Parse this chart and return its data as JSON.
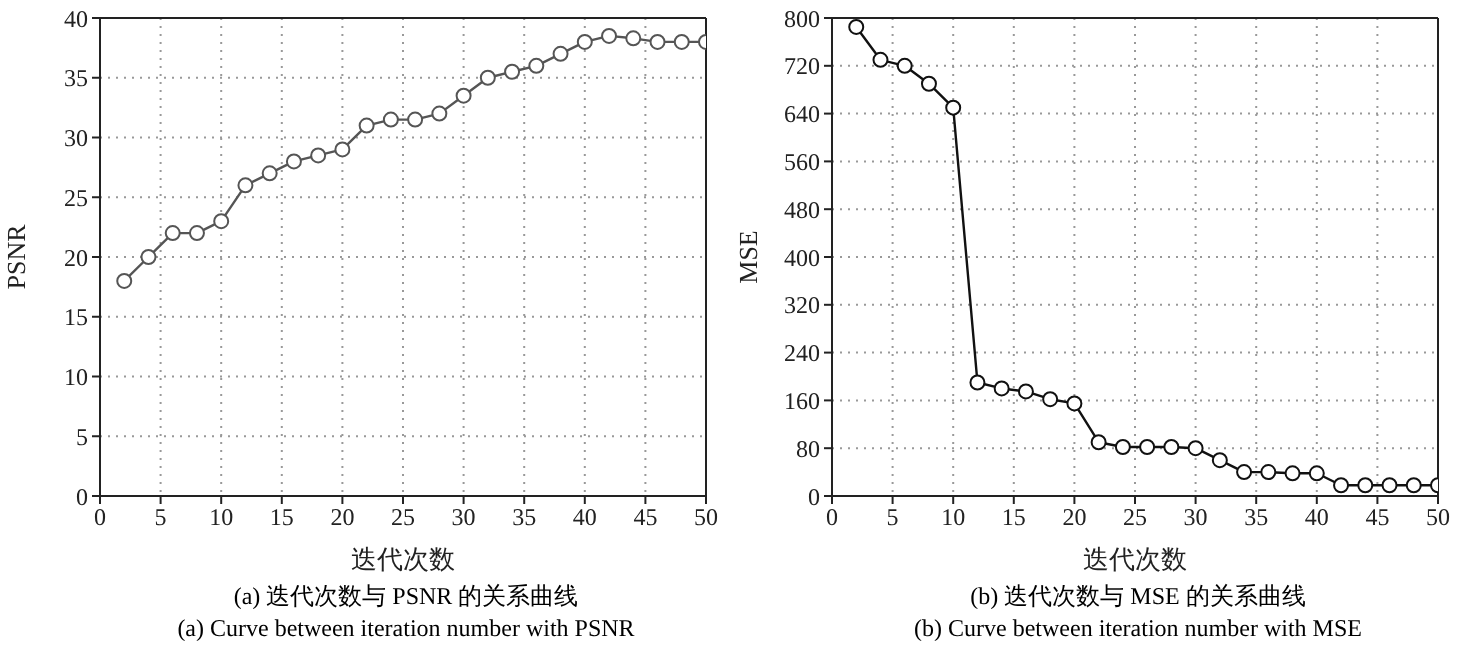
{
  "chart_data": [
    {
      "type": "line",
      "xlabel": "迭代次数",
      "ylabel": "PSNR",
      "x": [
        2,
        4,
        6,
        8,
        10,
        12,
        14,
        16,
        18,
        20,
        22,
        24,
        26,
        28,
        30,
        32,
        34,
        36,
        38,
        40,
        42,
        44,
        46,
        48,
        50
      ],
      "series": [
        {
          "color": "#555555",
          "values": [
            18,
            20,
            22,
            22,
            23,
            26,
            27,
            28,
            28.5,
            29,
            31,
            31.5,
            31.5,
            32,
            33.5,
            35,
            35.5,
            36,
            37,
            38,
            38.5,
            38.3,
            38,
            38,
            38
          ]
        }
      ],
      "xlim": [
        0,
        50
      ],
      "xticks": [
        0,
        5,
        10,
        15,
        20,
        25,
        30,
        35,
        40,
        45,
        50
      ],
      "ylim": [
        0,
        40
      ],
      "yticks": [
        0,
        5,
        10,
        15,
        20,
        25,
        30,
        35,
        40
      ],
      "grid": true,
      "marker": "circle",
      "line_style": "solid",
      "annotations": [
        "(a) 迭代次数与 PSNR 的关系曲线",
        "(a) Curve between iteration number with PSNR"
      ]
    },
    {
      "type": "line",
      "xlabel": "迭代次数",
      "ylabel": "MSE",
      "x": [
        2,
        4,
        6,
        8,
        10,
        12,
        14,
        16,
        18,
        20,
        22,
        24,
        26,
        28,
        30,
        32,
        34,
        36,
        38,
        40,
        42,
        44,
        46,
        48,
        50
      ],
      "series": [
        {
          "color": "#111111",
          "values": [
            785,
            730,
            720,
            690,
            650,
            190,
            180,
            175,
            162,
            155,
            90,
            82,
            82,
            82,
            80,
            60,
            40,
            40,
            38,
            38,
            18,
            18,
            18,
            18,
            18
          ]
        }
      ],
      "xlim": [
        0,
        50
      ],
      "xticks": [
        0,
        5,
        10,
        15,
        20,
        25,
        30,
        35,
        40,
        45,
        50
      ],
      "ylim": [
        0,
        800
      ],
      "yticks": [
        0,
        80,
        160,
        240,
        320,
        400,
        480,
        560,
        640,
        720,
        800
      ],
      "grid": true,
      "marker": "circle",
      "line_style": "solid",
      "annotations": [
        "(b) 迭代次数与 MSE 的关系曲线",
        "(b) Curve between iteration number with MSE"
      ]
    }
  ]
}
